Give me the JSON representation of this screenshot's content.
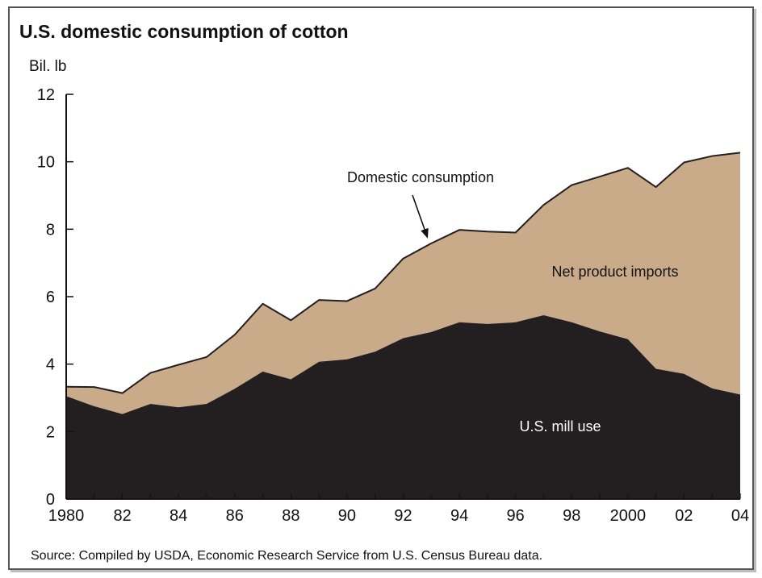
{
  "chart_data": {
    "type": "area",
    "title": "U.S. domestic consumption of cotton",
    "ylabel": "Bil. lb",
    "xlabel": "",
    "x": [
      1980,
      1981,
      1982,
      1983,
      1984,
      1985,
      1986,
      1987,
      1988,
      1989,
      1990,
      1991,
      1992,
      1993,
      1994,
      1995,
      1996,
      1997,
      1998,
      1999,
      2000,
      2001,
      2002,
      2003,
      2004
    ],
    "x_tick_values": [
      1980,
      1982,
      1984,
      1986,
      1988,
      1990,
      1992,
      1994,
      1996,
      1998,
      2000,
      2002,
      2004
    ],
    "x_tick_labels": [
      "1980",
      "82",
      "84",
      "86",
      "88",
      "90",
      "92",
      "94",
      "96",
      "98",
      "2000",
      "02",
      "04"
    ],
    "y_ticks": [
      0,
      2,
      4,
      6,
      8,
      10,
      12
    ],
    "ylim": [
      0,
      12
    ],
    "xlim": [
      1980,
      2004
    ],
    "grid": false,
    "stacked": true,
    "series": [
      {
        "name": "U.S. mill use",
        "color": "#231f20",
        "values": [
          3.05,
          2.75,
          2.52,
          2.82,
          2.72,
          2.82,
          3.27,
          3.78,
          3.55,
          4.07,
          4.14,
          4.37,
          4.77,
          4.95,
          5.24,
          5.19,
          5.24,
          5.45,
          5.24,
          4.97,
          4.74,
          3.86,
          3.71,
          3.28,
          3.1
        ]
      },
      {
        "name": "Net product imports",
        "color": "#c9ab8a",
        "values": [
          0.28,
          0.57,
          0.62,
          0.92,
          1.26,
          1.39,
          1.6,
          2.01,
          1.75,
          1.83,
          1.73,
          1.87,
          2.36,
          2.63,
          2.74,
          2.74,
          2.66,
          3.27,
          4.07,
          4.59,
          5.08,
          5.39,
          6.27,
          6.89,
          7.17
        ]
      }
    ],
    "total_line": {
      "name": "Domestic consumption",
      "values": [
        3.33,
        3.32,
        3.14,
        3.74,
        3.98,
        4.21,
        4.87,
        5.79,
        5.3,
        5.9,
        5.87,
        6.24,
        7.13,
        7.58,
        7.98,
        7.93,
        7.9,
        8.72,
        9.31,
        9.56,
        9.82,
        9.25,
        9.98,
        10.17,
        10.27
      ]
    },
    "annotations": [
      {
        "text": "Domestic consumption",
        "target_x": 1993,
        "target_y": 7.58
      },
      {
        "text": "Net product imports"
      },
      {
        "text": "U.S. mill use"
      }
    ],
    "source": "Source:  Compiled by USDA, Economic Research Service from U.S. Census Bureau data."
  }
}
